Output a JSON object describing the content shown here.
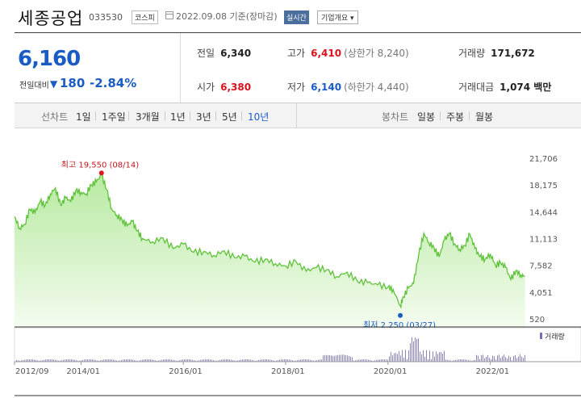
{
  "header": {
    "name": "세종공업",
    "code": "033530",
    "market": "코스피",
    "date": "2022.09.08 기준(장마감)",
    "realtime": "실시간",
    "company_info": "기업개요 ▾"
  },
  "price": {
    "current": "6,160",
    "change_label": "전일대비",
    "change": "180",
    "change_pct": "-2.84%",
    "direction": "down",
    "color": "#1a5bc4"
  },
  "stats": {
    "prev_close": {
      "label": "전일",
      "value": "6,340"
    },
    "high": {
      "label": "고가",
      "value": "6,410",
      "sub": "(상한가 8,240)"
    },
    "volume": {
      "label": "거래량",
      "value": "171,672"
    },
    "open": {
      "label": "시가",
      "value": "6,380"
    },
    "low": {
      "label": "저가",
      "value": "6,140",
      "sub": "(하한가 4,440)"
    },
    "trade_value": {
      "label": "거래대금",
      "value": "1,074 백만"
    }
  },
  "line_tabs": {
    "label": "선차트",
    "items": [
      "1일",
      "1주일",
      "3개월",
      "1년",
      "3년",
      "5년",
      "10년"
    ],
    "selected": "10년"
  },
  "candle_tabs": {
    "label": "봉차트",
    "items": [
      "일봉",
      "주봉",
      "월봉"
    ]
  },
  "chart_data": {
    "type": "area",
    "y_ticks": [
      "21,706",
      "18,175",
      "14,644",
      "11,113",
      "7,582",
      "4,051",
      "520"
    ],
    "ylim": [
      520,
      21706
    ],
    "x_ticks": [
      "2012/09",
      "2014/01",
      "2016/01",
      "2018/01",
      "2020/01",
      "2022/01"
    ],
    "high_annotation": "최고 19,550 (08/14)",
    "low_annotation": "최저 2,250 (03/27)",
    "volume_legend": "거래량",
    "series": [
      {
        "x": [
          2012.7,
          2012.8,
          2012.9,
          2013.0,
          2013.1,
          2013.2,
          2013.3,
          2013.4,
          2013.5,
          2013.6,
          2013.7,
          2013.8,
          2013.9,
          2014.0,
          2014.1,
          2014.2,
          2014.3,
          2014.4,
          2014.5,
          2014.6,
          2014.7,
          2014.8,
          2014.9,
          2015.0,
          2015.1,
          2015.2,
          2015.4,
          2015.6,
          2015.8,
          2016.0,
          2016.2,
          2016.4,
          2016.6,
          2016.8,
          2017.0,
          2017.2,
          2017.4,
          2017.6,
          2017.8,
          2018.0,
          2018.2,
          2018.4,
          2018.6,
          2018.8,
          2019.0,
          2019.2,
          2019.4,
          2019.6,
          2019.8,
          2020.0,
          2020.1,
          2020.24,
          2020.3,
          2020.4,
          2020.5,
          2020.6,
          2020.7,
          2020.8,
          2020.9,
          2021.0,
          2021.1,
          2021.2,
          2021.3,
          2021.4,
          2021.5,
          2021.6,
          2021.7,
          2021.8,
          2021.9,
          2022.0,
          2022.1,
          2022.2,
          2022.3,
          2022.4,
          2022.5,
          2022.6,
          2022.68
        ],
        "values": [
          14000,
          12500,
          13000,
          15000,
          14500,
          16000,
          15500,
          17000,
          17800,
          15500,
          16500,
          16000,
          17500,
          17200,
          17000,
          18200,
          18600,
          19550,
          17600,
          15000,
          14200,
          13600,
          12800,
          13400,
          12100,
          11100,
          10700,
          11200,
          9800,
          10400,
          9300,
          9400,
          8900,
          9500,
          8600,
          8800,
          8000,
          8400,
          7800,
          7500,
          8100,
          6800,
          7300,
          7000,
          6100,
          6700,
          5500,
          5300,
          5000,
          4700,
          4400,
          2250,
          3400,
          4600,
          5200,
          9000,
          11800,
          10600,
          9900,
          8700,
          10900,
          11800,
          10400,
          9700,
          10200,
          11700,
          9800,
          8700,
          8400,
          9100,
          7600,
          7900,
          7300,
          5700,
          6900,
          6300,
          6160
        ]
      }
    ]
  }
}
